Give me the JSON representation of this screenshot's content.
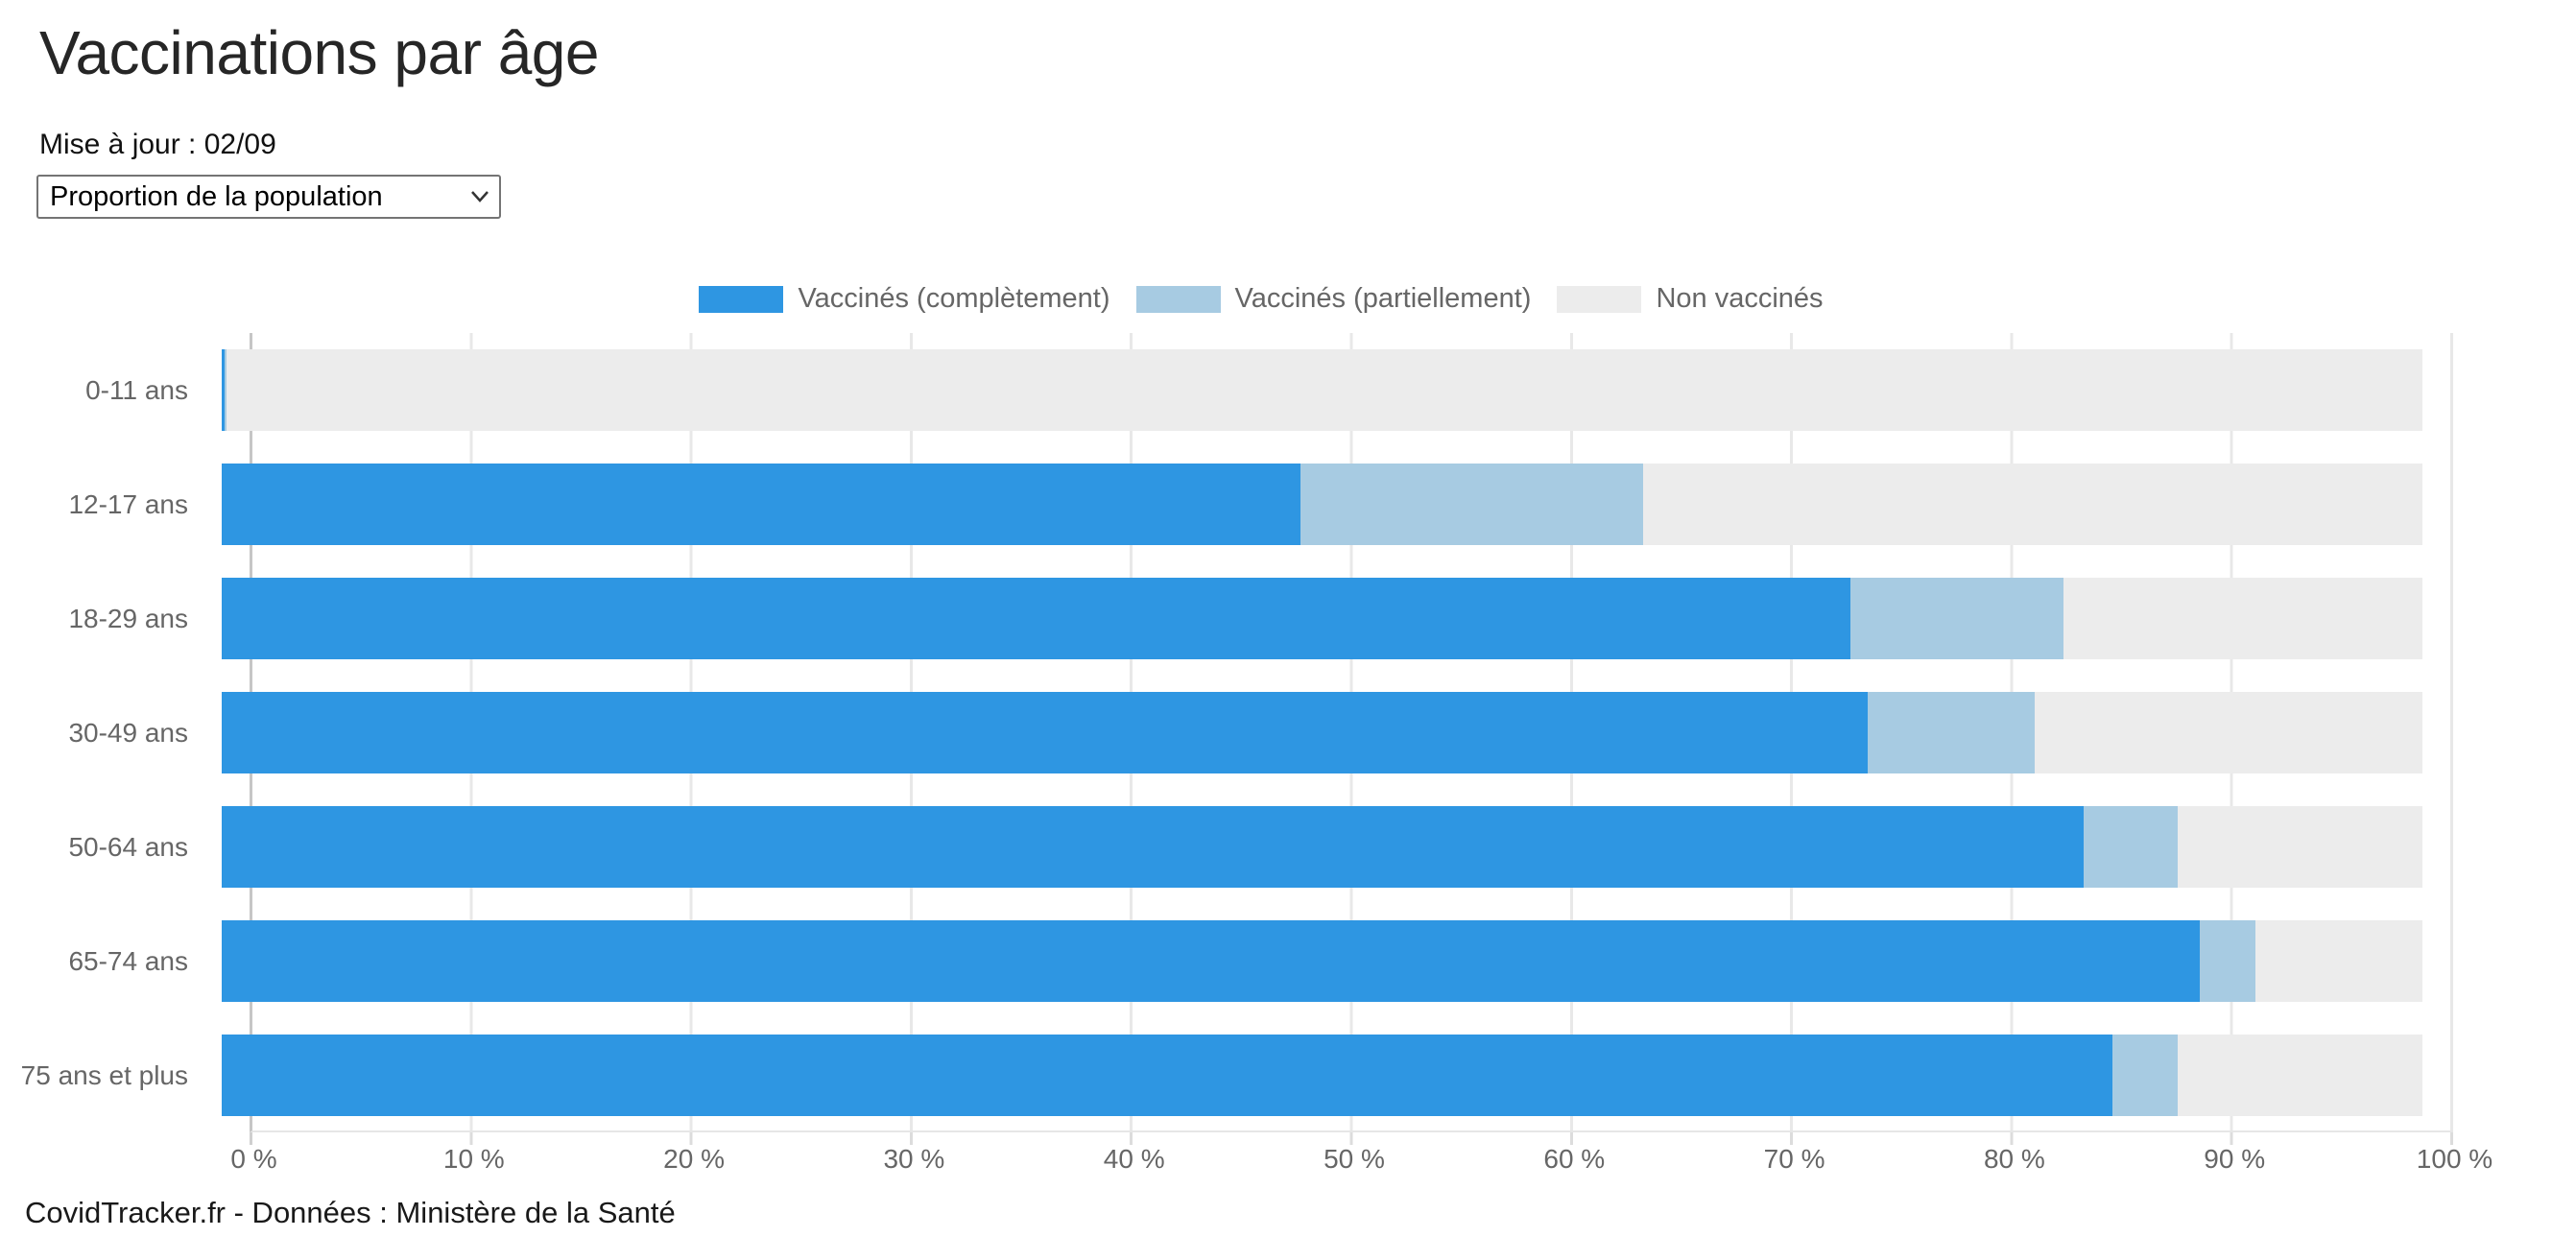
{
  "header": {
    "title": "Vaccinations par âge",
    "updated_label": "Mise à jour : 02/09"
  },
  "controls": {
    "metric_select": {
      "selected": "Proportion de la population"
    }
  },
  "chart_data": {
    "type": "bar",
    "orientation": "horizontal",
    "stacked": true,
    "unit": "%",
    "xlim": [
      0,
      100
    ],
    "grid": true,
    "legend_position": "top",
    "x_ticks": [
      "0 %",
      "10 %",
      "20 %",
      "30 %",
      "40 %",
      "50 %",
      "60 %",
      "70 %",
      "80 %",
      "90 %",
      "100 %"
    ],
    "categories": [
      "0-11 ans",
      "12-17 ans",
      "18-29 ans",
      "30-49 ans",
      "50-64 ans",
      "65-74 ans",
      "75 ans et plus"
    ],
    "series": [
      {
        "name": "Vaccinés (complètement)",
        "color": "#2e96e2",
        "values": [
          0.15,
          49.0,
          74.0,
          74.8,
          84.6,
          89.9,
          85.9
        ]
      },
      {
        "name": "Vaccinés (partiellement)",
        "color": "#a7cbe2",
        "values": [
          0.05,
          15.6,
          9.7,
          7.6,
          4.3,
          2.5,
          3.0
        ]
      },
      {
        "name": "Non vaccinés",
        "color": "#ececec",
        "values": [
          99.8,
          35.4,
          16.3,
          17.6,
          11.1,
          7.6,
          11.1
        ]
      }
    ]
  },
  "footer": {
    "credit": "CovidTracker.fr - Données : Ministère de la Santé"
  }
}
